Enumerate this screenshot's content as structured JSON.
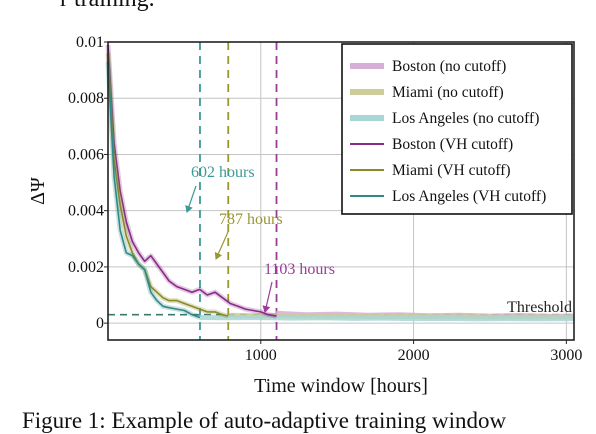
{
  "caption": {
    "top_fragment": "r training.",
    "bottom_fragment": "Figure 1: Example of auto-adaptive training window"
  },
  "chart_data": {
    "type": "line",
    "title": "",
    "xlabel": "Time window [hours]",
    "ylabel": "ΔΨ",
    "xlim": [
      0,
      3050
    ],
    "ylim": [
      -0.0006,
      0.01
    ],
    "xticks": [
      1000,
      2000,
      3000
    ],
    "xtick_labels": [
      "1000",
      "2000",
      "3000"
    ],
    "yticks": [
      0,
      0.002,
      0.004,
      0.006,
      0.008,
      0.01
    ],
    "ytick_labels": [
      "0",
      "0.002",
      "0.004",
      "0.006",
      "0.008",
      "0.01"
    ],
    "grid": true,
    "legend_position": "top-right",
    "threshold": {
      "value": 0.0003,
      "label": "Threshold",
      "color": "#3d7a6e"
    },
    "cutoffs": [
      {
        "x": 602,
        "label": "602 hours",
        "color": "#3a9a98"
      },
      {
        "x": 787,
        "label": "787 hours",
        "color": "#9a9630"
      },
      {
        "x": 1103,
        "label": "1103 hours",
        "color": "#9a3c9a"
      }
    ],
    "series": [
      {
        "name": "Boston (no cutoff)",
        "style": "band",
        "color": "#d6aed6",
        "x": [
          1100,
          1300,
          1500,
          1700,
          1900,
          2100,
          2300,
          2500,
          2700,
          2900,
          3050
        ],
        "y": [
          0.00035,
          0.0003,
          0.00032,
          0.00028,
          0.0003,
          0.00026,
          0.00028,
          0.00025,
          0.00027,
          0.00024,
          0.00025
        ]
      },
      {
        "name": "Miami (no cutoff)",
        "style": "band",
        "color": "#cdcc9a",
        "x": [
          790,
          1000,
          1200,
          1400,
          1600,
          1800,
          2000,
          2200,
          2400,
          2600,
          2800,
          3050
        ],
        "y": [
          0.00028,
          0.00026,
          0.00027,
          0.00024,
          0.00025,
          0.00023,
          0.00024,
          0.00022,
          0.00023,
          0.00021,
          0.00022,
          0.00021
        ]
      },
      {
        "name": "Los Angeles (no cutoff)",
        "style": "band",
        "color": "#a8d6d4",
        "x": [
          600,
          800,
          1000,
          1200,
          1400,
          1600,
          1800,
          2000,
          2200,
          2400,
          2600,
          2800,
          3050
        ],
        "y": [
          0.0002,
          0.00019,
          0.0002,
          0.00018,
          0.00019,
          0.00017,
          0.00018,
          0.00016,
          0.00017,
          0.00015,
          0.00016,
          0.00015,
          0.00016
        ]
      },
      {
        "name": "Boston (VH cutoff)",
        "style": "line",
        "color": "#8a2a8a",
        "x": [
          0,
          40,
          80,
          120,
          160,
          200,
          240,
          280,
          320,
          360,
          400,
          450,
          500,
          550,
          600,
          650,
          700,
          750,
          800,
          850,
          900,
          950,
          1000,
          1050,
          1103
        ],
        "y": [
          0.0099,
          0.0064,
          0.0047,
          0.0036,
          0.0029,
          0.0025,
          0.0022,
          0.0024,
          0.0021,
          0.0018,
          0.0015,
          0.0013,
          0.0012,
          0.0011,
          0.0012,
          0.001,
          0.0011,
          0.0009,
          0.0007,
          0.0006,
          0.0005,
          0.00045,
          0.0004,
          0.0003,
          0.00025
        ]
      },
      {
        "name": "Miami (VH cutoff)",
        "style": "line",
        "color": "#8a8a26",
        "x": [
          0,
          40,
          80,
          120,
          160,
          200,
          240,
          280,
          320,
          360,
          400,
          450,
          500,
          550,
          600,
          650,
          700,
          750,
          787
        ],
        "y": [
          0.0096,
          0.0058,
          0.0042,
          0.0031,
          0.0025,
          0.0021,
          0.0019,
          0.0013,
          0.0011,
          0.0009,
          0.0008,
          0.0008,
          0.0007,
          0.0006,
          0.0005,
          0.0004,
          0.0004,
          0.0003,
          0.00025
        ]
      },
      {
        "name": "Los Angeles (VH cutoff)",
        "style": "line",
        "color": "#2e8a88",
        "x": [
          0,
          40,
          80,
          120,
          160,
          200,
          240,
          280,
          320,
          360,
          400,
          450,
          500,
          550,
          602
        ],
        "y": [
          0.0093,
          0.0052,
          0.0033,
          0.0025,
          0.0024,
          0.0021,
          0.0019,
          0.0011,
          0.0008,
          0.0006,
          0.00055,
          0.0005,
          0.00045,
          0.0003,
          0.0002
        ]
      }
    ]
  }
}
